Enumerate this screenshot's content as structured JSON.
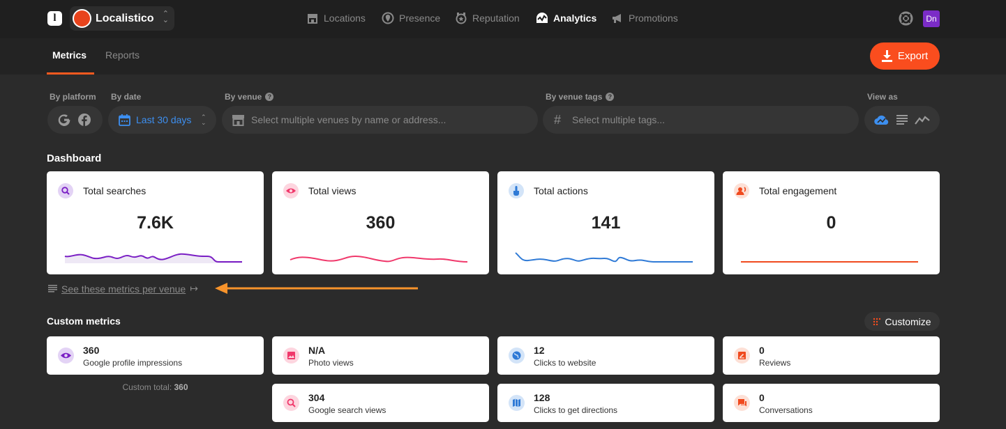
{
  "header": {
    "logo_letter": "l",
    "org_name": "Localistico",
    "nav": [
      {
        "label": "Locations",
        "icon": "store-icon"
      },
      {
        "label": "Presence",
        "icon": "location-pin-icon"
      },
      {
        "label": "Reputation",
        "icon": "badge-icon"
      },
      {
        "label": "Analytics",
        "icon": "analytics-icon"
      },
      {
        "label": "Promotions",
        "icon": "megaphone-icon"
      }
    ],
    "active_nav": "Analytics",
    "user_initials": "Dn"
  },
  "subnav": {
    "tabs": [
      "Metrics",
      "Reports"
    ],
    "active_tab": "Metrics",
    "export_label": "Export"
  },
  "filters": {
    "platform_label": "By platform",
    "date_label": "By date",
    "date_value": "Last 30 days",
    "venue_label": "By venue",
    "venue_placeholder": "Select multiple venues by name or address...",
    "tags_label": "By venue tags",
    "tags_placeholder": "Select multiple tags...",
    "view_as_label": "View as"
  },
  "dashboard": {
    "title": "Dashboard",
    "cards": [
      {
        "label": "Total searches",
        "value": "7.6K",
        "color": "#7a1fc4",
        "icon_bg": "#e3d3f5"
      },
      {
        "label": "Total views",
        "value": "360",
        "color": "#f0386b",
        "icon_bg": "#fdd5df"
      },
      {
        "label": "Total actions",
        "value": "141",
        "color": "#2f7ad6",
        "icon_bg": "#d3e4f8"
      },
      {
        "label": "Total engagement",
        "value": "0",
        "color": "#f04a1e",
        "icon_bg": "#fde0d6"
      }
    ],
    "per_venue_link": "See these metrics per venue"
  },
  "custom_metrics": {
    "title": "Custom metrics",
    "customize_label": "Customize",
    "total_label": "Custom total:",
    "total_value": "360",
    "items": [
      {
        "value": "360",
        "label": "Google profile impressions",
        "icon": "eye-icon",
        "color": "#7a1fc4",
        "bg": "#e3d3f5"
      },
      {
        "value": "N/A",
        "label": "Photo views",
        "icon": "image-icon",
        "color": "#f0386b",
        "bg": "#fdd5df"
      },
      {
        "value": "12",
        "label": "Clicks to website",
        "icon": "globe-icon",
        "color": "#2f7ad6",
        "bg": "#d3e4f8"
      },
      {
        "value": "0",
        "label": "Reviews",
        "icon": "review-icon",
        "color": "#f04a1e",
        "bg": "#fde0d6"
      },
      {
        "value": "304",
        "label": "Google search views",
        "icon": "search-icon",
        "color": "#f0386b",
        "bg": "#fdd5df"
      },
      {
        "value": "128",
        "label": "Clicks to get directions",
        "icon": "map-icon",
        "color": "#2f7ad6",
        "bg": "#d3e4f8"
      },
      {
        "value": "0",
        "label": "Conversations",
        "icon": "chat-icon",
        "color": "#f04a1e",
        "bg": "#fde0d6"
      }
    ]
  },
  "colors": {
    "accent": "#fa4d1e",
    "annotation_arrow": "#f7932b"
  }
}
